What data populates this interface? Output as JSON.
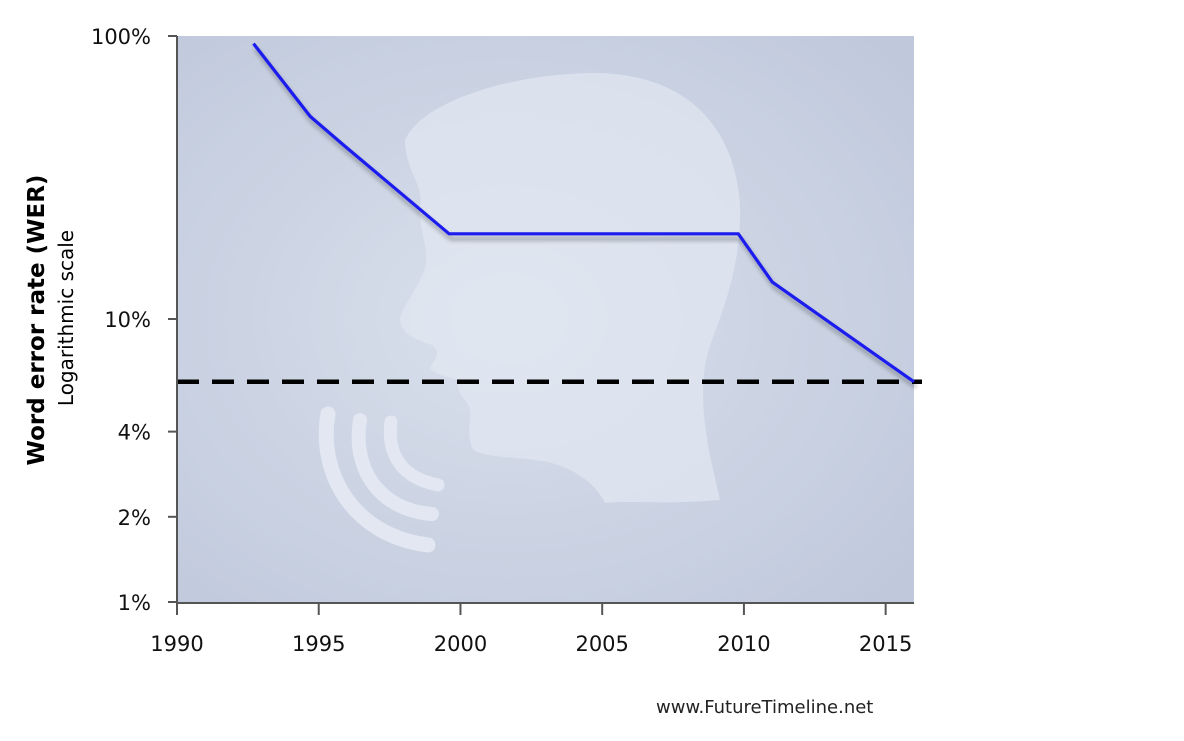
{
  "chart_data": {
    "type": "line",
    "title": "",
    "xlabel": "",
    "ylabel": "Word error rate (WER)",
    "ylabel_sub": "Logarithmic scale",
    "y_scale": "log",
    "xlim": [
      1990,
      2016
    ],
    "ylim": [
      1,
      100
    ],
    "x_ticks": [
      1990,
      1995,
      2000,
      2005,
      2010,
      2015
    ],
    "y_ticks": [
      {
        "value": 100,
        "label": "100%"
      },
      {
        "value": 10,
        "label": "10%"
      },
      {
        "value": 4,
        "label": "4%"
      },
      {
        "value": 2,
        "label": "2%"
      },
      {
        "value": 1,
        "label": "1%"
      }
    ],
    "grid": false,
    "series": [
      {
        "color": "#1a1aee",
        "points": [
          {
            "x": 1992.7,
            "y": 94
          },
          {
            "x": 1994.7,
            "y": 52
          },
          {
            "x": 1995.9,
            "y": 41
          },
          {
            "x": 1999.6,
            "y": 20
          },
          {
            "x": 2009.8,
            "y": 20
          },
          {
            "x": 2011.0,
            "y": 13.5
          },
          {
            "x": 2016.0,
            "y": 6
          }
        ]
      }
    ],
    "reference_line": {
      "y": 6,
      "style": "dashed",
      "color": "#000000"
    },
    "background_color": "#c5cfe0",
    "background_icon": "speaking-head-icon"
  },
  "source": "www.FutureTimeline.net"
}
